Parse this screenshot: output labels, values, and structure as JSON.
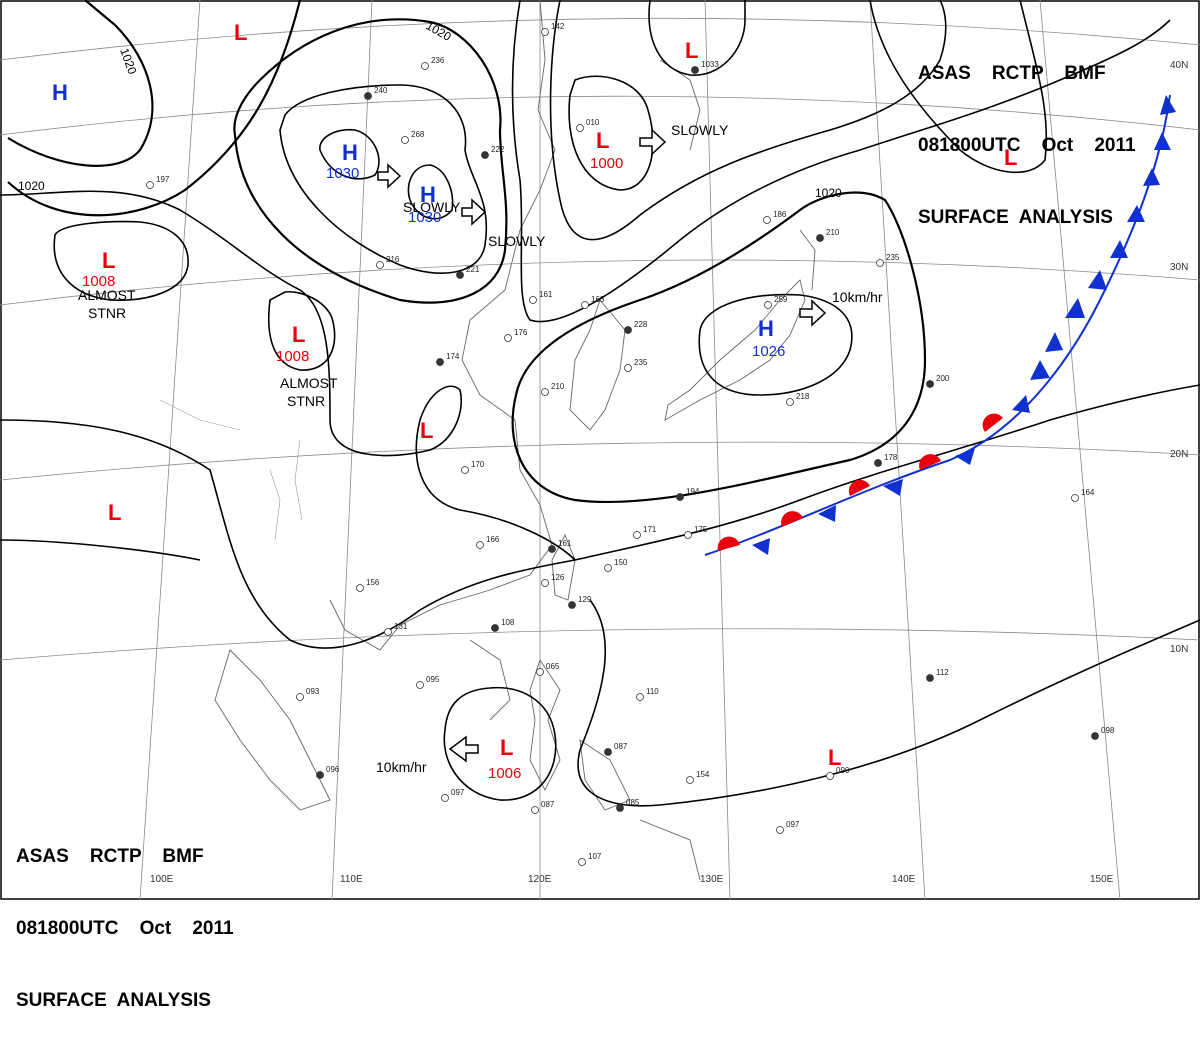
{
  "header": {
    "line1": "ASAS    RCTP    BMF",
    "line2": "081800UTC    Oct    2011",
    "line3": "SURFACE  ANALYSIS"
  },
  "lows": [
    {
      "letter": "L",
      "value": ""
    },
    {
      "letter": "L",
      "value": "1000"
    },
    {
      "letter": "L",
      "value": ""
    },
    {
      "letter": "L",
      "value": "1008"
    },
    {
      "letter": "L",
      "value": "1008"
    },
    {
      "letter": "L",
      "value": ""
    },
    {
      "letter": "L",
      "value": ""
    },
    {
      "letter": "L",
      "value": "1006"
    },
    {
      "letter": "L",
      "value": ""
    },
    {
      "letter": "L",
      "value": ""
    }
  ],
  "highs": [
    {
      "letter": "H",
      "value": ""
    },
    {
      "letter": "H",
      "value": "1030"
    },
    {
      "letter": "H",
      "value": "1030"
    },
    {
      "letter": "H",
      "value": "1026"
    }
  ],
  "notes": {
    "slowly_1": "SLOWLY",
    "slowly_2": "SLOWLY",
    "slowly_3": "SLOWLY",
    "speed_1": "10km/hr",
    "speed_2": "10km/hr",
    "almost_1a": "ALMOST",
    "almost_1b": "STNR",
    "almost_2a": "ALMOST",
    "almost_2b": "STNR"
  },
  "isobar_labels": [
    "1020",
    "1020",
    "1020",
    "1020"
  ],
  "longitude_labels": [
    "110E",
    "120E",
    "130E",
    "140E",
    "150E",
    "100E"
  ],
  "latitude_labels": [
    "40N",
    "30N",
    "20N",
    "10N"
  ],
  "station_obs": [
    "240",
    "236",
    "268",
    "222",
    "142",
    "010",
    "1033",
    "197",
    "216",
    "221",
    "161",
    "163",
    "228",
    "235",
    "259",
    "210",
    "186",
    "235",
    "174",
    "176",
    "210",
    "200",
    "218",
    "170",
    "194",
    "171",
    "175",
    "178",
    "164",
    "166",
    "161",
    "150",
    "126",
    "129",
    "156",
    "131",
    "108",
    "065",
    "110",
    "087",
    "093",
    "095",
    "096",
    "097",
    "087",
    "085",
    "107",
    "154",
    "112",
    "090",
    "097",
    "098"
  ],
  "colors": {
    "low": "#e8000b",
    "high": "#1030d0",
    "isobar": "#000000",
    "grid": "#888888",
    "coast": "#555555",
    "warm_front": "#e8000b",
    "cold_front": "#1030d0"
  }
}
